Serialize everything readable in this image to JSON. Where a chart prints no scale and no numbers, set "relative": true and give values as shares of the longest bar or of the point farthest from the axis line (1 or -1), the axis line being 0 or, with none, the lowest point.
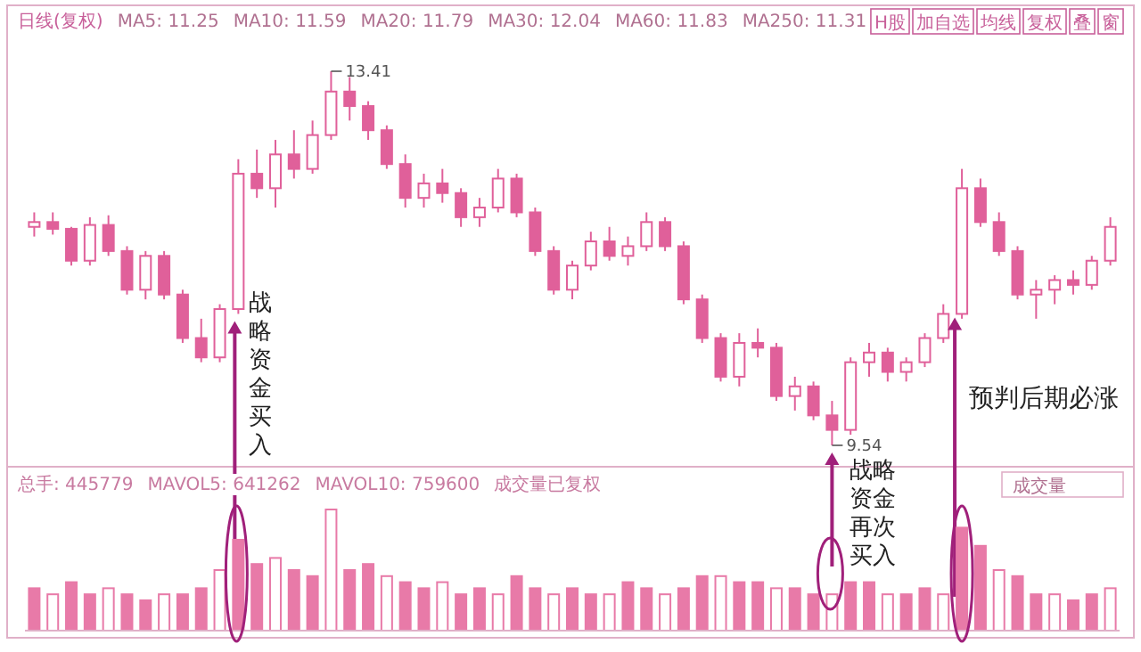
{
  "chart_data": [
    {
      "type": "candlestick",
      "color": "#e0609a",
      "categories": [
        null,
        null,
        null,
        null,
        null,
        null,
        null,
        null,
        null,
        null,
        null,
        null,
        null,
        null,
        null,
        null,
        null,
        null,
        null,
        null,
        null,
        null,
        null,
        null,
        null,
        null,
        null,
        null,
        null,
        null,
        null,
        null,
        null,
        null,
        null,
        null,
        null,
        null,
        null,
        null,
        null,
        null,
        null,
        null,
        null,
        null,
        null,
        null,
        null,
        null,
        null,
        null,
        null,
        null,
        null,
        null,
        null,
        null,
        null
      ],
      "ohlc": [
        [
          11.8,
          11.95,
          11.7,
          11.85
        ],
        [
          11.85,
          11.95,
          11.72,
          11.78
        ],
        [
          11.78,
          11.8,
          11.4,
          11.45
        ],
        [
          11.45,
          11.9,
          11.4,
          11.82
        ],
        [
          11.82,
          11.92,
          11.5,
          11.55
        ],
        [
          11.55,
          11.6,
          11.1,
          11.15
        ],
        [
          11.15,
          11.55,
          11.05,
          11.5
        ],
        [
          11.5,
          11.55,
          11.05,
          11.1
        ],
        [
          11.1,
          11.15,
          10.6,
          10.65
        ],
        [
          10.65,
          10.85,
          10.4,
          10.45
        ],
        [
          10.45,
          11.0,
          10.4,
          10.95
        ],
        [
          10.95,
          12.5,
          10.9,
          12.35
        ],
        [
          12.35,
          12.6,
          12.1,
          12.2
        ],
        [
          12.2,
          12.7,
          12.0,
          12.55
        ],
        [
          12.55,
          12.8,
          12.3,
          12.4
        ],
        [
          12.4,
          12.9,
          12.35,
          12.75
        ],
        [
          12.75,
          13.41,
          12.7,
          13.2
        ],
        [
          13.2,
          13.35,
          12.9,
          13.05
        ],
        [
          13.05,
          13.1,
          12.7,
          12.8
        ],
        [
          12.8,
          12.85,
          12.4,
          12.45
        ],
        [
          12.45,
          12.55,
          12.0,
          12.1
        ],
        [
          12.1,
          12.35,
          12.0,
          12.25
        ],
        [
          12.25,
          12.4,
          12.05,
          12.15
        ],
        [
          12.15,
          12.2,
          11.8,
          11.9
        ],
        [
          11.9,
          12.1,
          11.8,
          12.0
        ],
        [
          12.0,
          12.4,
          11.95,
          12.3
        ],
        [
          12.3,
          12.35,
          11.9,
          11.95
        ],
        [
          11.95,
          12.0,
          11.5,
          11.55
        ],
        [
          11.55,
          11.6,
          11.1,
          11.15
        ],
        [
          11.15,
          11.45,
          11.05,
          11.4
        ],
        [
          11.4,
          11.75,
          11.35,
          11.65
        ],
        [
          11.65,
          11.8,
          11.45,
          11.5
        ],
        [
          11.5,
          11.7,
          11.4,
          11.6
        ],
        [
          11.6,
          11.95,
          11.55,
          11.85
        ],
        [
          11.85,
          11.9,
          11.55,
          11.6
        ],
        [
          11.6,
          11.65,
          11.0,
          11.05
        ],
        [
          11.05,
          11.1,
          10.6,
          10.65
        ],
        [
          10.65,
          10.7,
          10.2,
          10.25
        ],
        [
          10.25,
          10.7,
          10.15,
          10.6
        ],
        [
          10.6,
          10.75,
          10.45,
          10.55
        ],
        [
          10.55,
          10.6,
          10.0,
          10.05
        ],
        [
          10.05,
          10.25,
          9.9,
          10.15
        ],
        [
          10.15,
          10.2,
          9.8,
          9.85
        ],
        [
          9.85,
          10.0,
          9.54,
          9.7
        ],
        [
          9.7,
          10.45,
          9.65,
          10.4
        ],
        [
          10.4,
          10.6,
          10.25,
          10.5
        ],
        [
          10.5,
          10.55,
          10.2,
          10.3
        ],
        [
          10.3,
          10.45,
          10.2,
          10.4
        ],
        [
          10.4,
          10.7,
          10.35,
          10.65
        ],
        [
          10.65,
          11.0,
          10.6,
          10.9
        ],
        [
          10.9,
          12.4,
          10.85,
          12.2
        ],
        [
          12.2,
          12.3,
          11.8,
          11.85
        ],
        [
          11.85,
          11.95,
          11.5,
          11.55
        ],
        [
          11.55,
          11.6,
          11.05,
          11.1
        ],
        [
          11.1,
          11.25,
          10.85,
          11.15
        ],
        [
          11.15,
          11.3,
          11.0,
          11.25
        ],
        [
          11.25,
          11.35,
          11.1,
          11.2
        ],
        [
          11.2,
          11.5,
          11.15,
          11.45
        ],
        [
          11.45,
          11.9,
          11.4,
          11.8
        ]
      ],
      "annotations": [
        "日线(复权)",
        "MA5: 11.25",
        "MA10: 11.59",
        "MA20: 11.79",
        "MA30: 12.04",
        "MA60: 11.83",
        "MA250: 11.31",
        "H股",
        "加自选",
        "均线",
        "复权",
        "叠",
        "窗",
        "13.41",
        "9.54",
        "战略资金买入",
        "战略资金再次买入",
        "预判后期必涨"
      ]
    },
    {
      "type": "bar",
      "relative": true,
      "color": "#e87aa8",
      "categories": [
        null,
        null,
        null,
        null,
        null,
        null,
        null,
        null,
        null,
        null,
        null,
        null,
        null,
        null,
        null,
        null,
        null,
        null,
        null,
        null,
        null,
        null,
        null,
        null,
        null,
        null,
        null,
        null,
        null,
        null,
        null,
        null,
        null,
        null,
        null,
        null,
        null,
        null,
        null,
        null,
        null,
        null,
        null,
        null,
        null,
        null,
        null,
        null,
        null,
        null,
        null,
        null,
        null,
        null,
        null,
        null,
        null,
        null,
        null
      ],
      "values": [
        0.35,
        0.3,
        0.4,
        0.3,
        0.35,
        0.3,
        0.25,
        0.3,
        0.3,
        0.35,
        0.5,
        0.75,
        0.55,
        0.6,
        0.5,
        0.45,
        1,
        0.5,
        0.55,
        0.45,
        0.4,
        0.35,
        0.4,
        0.3,
        0.35,
        0.3,
        0.45,
        0.35,
        0.3,
        0.35,
        0.3,
        0.3,
        0.4,
        0.35,
        0.3,
        0.35,
        0.45,
        0.45,
        0.4,
        0.4,
        0.35,
        0.35,
        0.3,
        0.3,
        0.4,
        0.4,
        0.3,
        0.3,
        0.35,
        0.3,
        0.85,
        0.7,
        0.5,
        0.45,
        0.3,
        0.3,
        0.25,
        0.3,
        0.35
      ],
      "annotations": [
        "总手: 445779",
        "MAVOL5: 641262",
        "MAVOL10: 759600",
        "成交量已复权",
        "成交量"
      ]
    }
  ]
}
